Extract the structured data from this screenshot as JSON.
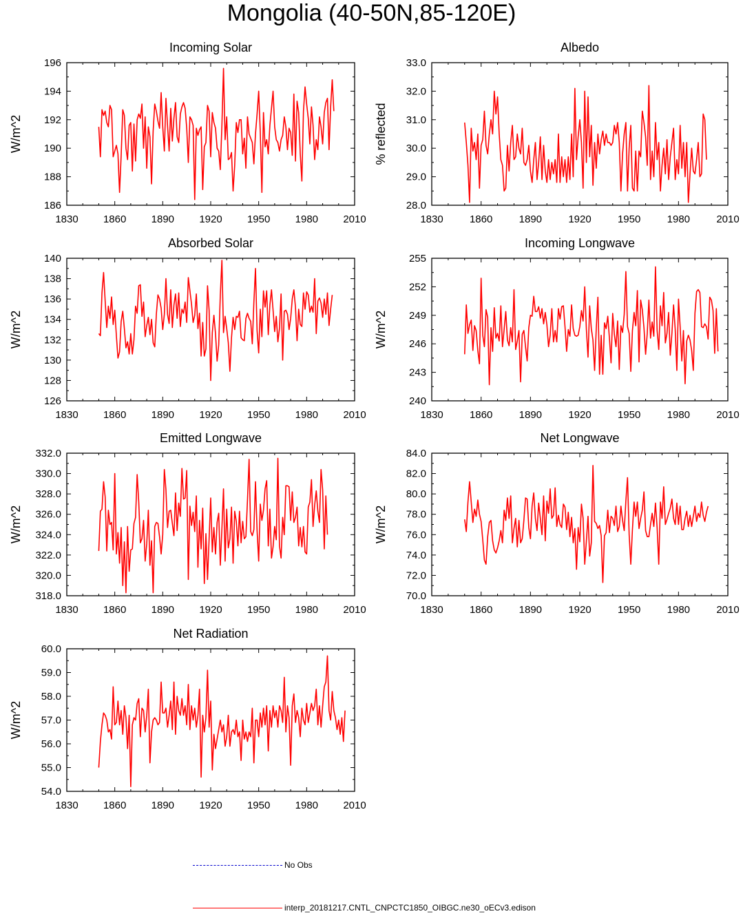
{
  "title": "Mongolia (40-50N,85-120E)",
  "legend": {
    "obs_label": "No Obs",
    "obs_color": "#0000cc",
    "model_label": "interp_20181217.CNTL_CNPCTC1850_OIBGC.ne30_oECv3.edison",
    "model_color": "#ff0000"
  },
  "chart_data": [
    {
      "type": "line",
      "title": "Incoming Solar",
      "ylabel": "W/m^2",
      "xlim": [
        1830,
        2010
      ],
      "ylim": [
        186,
        196
      ],
      "xticks": [
        1830,
        1860,
        1890,
        1920,
        1950,
        1980,
        2010
      ],
      "yticks": [
        "186",
        "188",
        "190",
        "192",
        "194",
        "196"
      ],
      "x_start": 1850,
      "values": [
        191.5,
        189.4,
        192.7,
        192.3,
        192.6,
        191.8,
        191.5,
        193.0,
        192.7,
        189.4,
        189.8,
        190.2,
        189.6,
        186.9,
        189.5,
        192.7,
        192.3,
        190.0,
        189.2,
        191.6,
        191.8,
        188.4,
        191.7,
        189.1,
        192.0,
        192.4,
        192.1,
        193.1,
        190.0,
        192.2,
        188.6,
        191.5,
        190.8,
        187.5,
        191.2,
        193.1,
        192.6,
        191.9,
        191.4,
        193.9,
        191.5,
        189.8,
        193.5,
        191.6,
        189.8,
        192.8,
        190.5,
        192.1,
        193.2,
        190.8,
        190.4,
        192.4,
        192.9,
        193.2,
        192.8,
        191.4,
        189.0,
        192.2,
        192.0,
        191.6,
        186.4,
        191.4,
        190.9,
        191.3,
        191.5,
        187.1,
        190.1,
        190.4,
        193.0,
        192.6,
        189.4,
        192.5,
        191.8,
        191.4,
        190.0,
        189.8,
        188.5,
        191.6,
        195.6,
        190.6,
        192.2,
        189.2,
        189.3,
        189.7,
        187.0,
        188.8,
        191.8,
        191.1,
        192.0,
        192.0,
        189.6,
        190.7,
        188.6,
        192.2,
        191.0,
        190.7,
        190.4,
        188.9,
        191.0,
        192.4,
        194.0,
        191.1,
        186.9,
        192.5,
        190.1,
        190.6,
        189.6,
        191.6,
        192.8,
        194.0,
        191.5,
        190.6,
        190.4,
        189.8,
        190.6,
        190.9,
        192.2,
        191.5,
        189.9,
        191.4,
        191.1,
        189.5,
        193.8,
        189.1,
        193.3,
        192.5,
        189.6,
        187.7,
        192.6,
        194.3,
        193.1,
        192.1,
        190.3,
        192.9,
        191.6,
        189.2,
        190.6,
        189.9,
        192.2,
        191.5,
        190.3,
        192.5,
        193.2,
        193.5,
        189.9,
        192.9,
        194.8,
        192.6
      ]
    },
    {
      "type": "line",
      "title": "Albedo",
      "ylabel": "% reflected",
      "xlim": [
        1830,
        2010
      ],
      "ylim": [
        28,
        33
      ],
      "xticks": [
        1830,
        1860,
        1890,
        1920,
        1950,
        1980,
        2010
      ],
      "yticks": [
        "28.0",
        "29.0",
        "30.0",
        "31.0",
        "32.0",
        "33.0"
      ],
      "x_start": 1850,
      "values": [
        30.9,
        30.2,
        29.4,
        28.1,
        30.7,
        29.9,
        30.2,
        29.6,
        30.5,
        28.6,
        30.1,
        30.3,
        31.3,
        30.1,
        29.8,
        30.5,
        31.0,
        30.5,
        32.0,
        31.2,
        31.8,
        30.5,
        29.6,
        29.4,
        28.5,
        28.6,
        30.1,
        29.2,
        30.2,
        30.8,
        29.6,
        29.7,
        30.5,
        30.0,
        29.8,
        30.7,
        29.5,
        29.4,
        29.6,
        30.1,
        29.2,
        28.8,
        29.6,
        30.2,
        28.9,
        29.5,
        30.4,
        28.9,
        30.1,
        29.2,
        28.8,
        29.6,
        28.9,
        29.5,
        29.1,
        29.6,
        28.8,
        30.5,
        28.8,
        29.7,
        29.0,
        29.6,
        28.8,
        29.7,
        28.9,
        30.5,
        29.0,
        32.1,
        29.6,
        30.4,
        31.0,
        30.2,
        28.6,
        32.0,
        29.5,
        31.8,
        29.7,
        30.8,
        28.7,
        30.2,
        29.3,
        30.5,
        29.8,
        30.3,
        30.6,
        30.1,
        30.5,
        30.2,
        30.2,
        30.1,
        30.2,
        30.8,
        30.5,
        30.9,
        30.2,
        28.5,
        29.8,
        30.5,
        30.9,
        28.5,
        30.0,
        30.8,
        28.6,
        28.5,
        29.9,
        28.5,
        29.9,
        29.7,
        31.3,
        30.9,
        30.4,
        29.4,
        32.2,
        28.9,
        29.9,
        29.0,
        30.9,
        29.6,
        30.2,
        28.5,
        29.4,
        30.0,
        29.1,
        30.3,
        28.9,
        29.7,
        30.2,
        30.7,
        28.9,
        29.6,
        29.1,
        30.8,
        29.3,
        30.2,
        29.0,
        30.2,
        28.1,
        29.1,
        30.0,
        29.2,
        29.1,
        29.6,
        30.2,
        29.0,
        29.1,
        31.2,
        31.0,
        29.6
      ]
    },
    {
      "type": "line",
      "title": "Absorbed Solar",
      "ylabel": "W/m^2",
      "xlim": [
        1830,
        2010
      ],
      "ylim": [
        126,
        140
      ],
      "xticks": [
        1830,
        1860,
        1890,
        1920,
        1950,
        1980,
        2010
      ],
      "yticks": [
        "126",
        "128",
        "130",
        "132",
        "134",
        "136",
        "138",
        "140"
      ],
      "x_start": 1850,
      "values": [
        132.6,
        132.4,
        136.6,
        138.6,
        135.8,
        133.2,
        135.3,
        134.1,
        136.2,
        133.5,
        134.9,
        132.4,
        130.2,
        130.8,
        133.8,
        134.8,
        133.1,
        131.2,
        131.8,
        130.6,
        132.6,
        130.6,
        132.0,
        135.3,
        134.6,
        137.3,
        137.4,
        134.3,
        135.7,
        132.3,
        133.4,
        134.2,
        132.5,
        134.0,
        131.7,
        131.3,
        134.5,
        136.4,
        136.0,
        135.1,
        133.0,
        134.5,
        138.0,
        134.5,
        133.6,
        136.9,
        133.2,
        135.4,
        136.5,
        134.1,
        136.6,
        133.3,
        135.0,
        134.6,
        135.7,
        133.7,
        138.1,
        136.8,
        135.5,
        133.7,
        134.4,
        136.5,
        133.1,
        134.6,
        130.4,
        133.7,
        130.4,
        131.1,
        137.3,
        134.9,
        128.0,
        132.7,
        134.4,
        132.6,
        129.9,
        131.5,
        136.4,
        139.8,
        132.7,
        134.3,
        133.1,
        131.7,
        128.9,
        132.2,
        134.2,
        133.0,
        134.3,
        134.2,
        134.8,
        132.2,
        132.0,
        131.9,
        134.1,
        134.6,
        134.1,
        133.8,
        131.6,
        135.7,
        139.0,
        132.9,
        130.7,
        135.0,
        132.3,
        136.8,
        135.2,
        136.8,
        132.5,
        135.4,
        136.9,
        134.9,
        132.8,
        134.3,
        131.8,
        133.1,
        136.5,
        130.0,
        134.8,
        134.9,
        134.5,
        133.0,
        134.1,
        136.0,
        136.9,
        135.2,
        131.9,
        135.0,
        133.5,
        133.3,
        136.6,
        135.0,
        136.7,
        136.4,
        134.7,
        135.3,
        134.7,
        138.0,
        132.6,
        135.8,
        136.1,
        135.6,
        134.2,
        136.0,
        134.5,
        136.6,
        133.4,
        135.0,
        136.4
      ]
    },
    {
      "type": "line",
      "title": "Incoming Longwave",
      "ylabel": "W/m^2",
      "xlim": [
        1830,
        2010
      ],
      "ylim": [
        240,
        255
      ],
      "xticks": [
        1830,
        1860,
        1890,
        1920,
        1950,
        1980,
        2010
      ],
      "yticks": [
        "240",
        "243",
        "246",
        "249",
        "252",
        "255"
      ],
      "x_start": 1850,
      "values": [
        244.9,
        250.1,
        247.1,
        248.0,
        248.5,
        245.3,
        247.9,
        247.4,
        245.3,
        243.9,
        252.9,
        246.9,
        245.7,
        249.6,
        248.8,
        241.7,
        247.7,
        245.2,
        249.8,
        246.6,
        247.1,
        246.3,
        250.0,
        245.7,
        247.5,
        249.4,
        246.4,
        245.8,
        247.7,
        246.2,
        251.7,
        245.4,
        246.3,
        247.4,
        242.0,
        247.0,
        247.4,
        245.7,
        244.2,
        247.7,
        249.0,
        248.9,
        251.0,
        249.4,
        249.4,
        249.9,
        248.7,
        249.7,
        248.1,
        249.3,
        248.0,
        245.7,
        246.9,
        249.7,
        246.2,
        247.4,
        246.2,
        249.7,
        248.6,
        249.9,
        250.0,
        247.8,
        245.2,
        247.5,
        246.8,
        250.1,
        247.6,
        246.9,
        246.8,
        246.9,
        247.8,
        249.5,
        248.4,
        252.0,
        247.5,
        244.6,
        250.0,
        247.6,
        246.4,
        243.2,
        247.6,
        250.9,
        242.8,
        246.9,
        242.8,
        248.2,
        247.6,
        248.9,
        246.6,
        244.0,
        249.2,
        247.0,
        245.7,
        248.4,
        243.3,
        247.9,
        247.2,
        249.1,
        253.6,
        247.8,
        247.1,
        243.1,
        247.4,
        249.3,
        247.9,
        251.6,
        244.1,
        250.6,
        249.6,
        247.7,
        244.9,
        247.1,
        250.6,
        246.6,
        248.3,
        246.8,
        254.1,
        247.4,
        245.4,
        250.0,
        247.9,
        251.4,
        246.1,
        247.1,
        249.3,
        244.8,
        247.1,
        250.1,
        247.5,
        243.2,
        250.7,
        247.8,
        244.2,
        247.4,
        241.8,
        246.3,
        246.9,
        246.4,
        245.3,
        243.2,
        249.2,
        251.5,
        251.7,
        251.4,
        247.8,
        247.7,
        248.1,
        247.8,
        246.5,
        250.9,
        250.6,
        249.5,
        245.0,
        249.7,
        245.2
      ]
    },
    {
      "type": "line",
      "title": "Emitted Longwave",
      "ylabel": "W/m^2",
      "xlim": [
        1830,
        2010
      ],
      "ylim": [
        318,
        332
      ],
      "xticks": [
        1830,
        1860,
        1890,
        1920,
        1950,
        1980,
        2010
      ],
      "yticks": [
        "318.0",
        "320.0",
        "322.0",
        "324.0",
        "326.0",
        "328.0",
        "330.0",
        "332.0"
      ],
      "x_start": 1850,
      "values": [
        322.4,
        326.3,
        326.5,
        329.2,
        327.7,
        322.4,
        326.4,
        325.0,
        325.2,
        322.5,
        330.0,
        322.1,
        324.2,
        321.2,
        324.7,
        319.0,
        323.3,
        318.3,
        324.8,
        320.4,
        322.5,
        322.6,
        325.1,
        325.7,
        329.9,
        327.2,
        323.2,
        323.6,
        325.4,
        321.4,
        323.1,
        326.4,
        321.0,
        323.4,
        318.3,
        324.8,
        325.2,
        325.1,
        323.8,
        322.1,
        324.0,
        330.4,
        328.4,
        324.7,
        326.3,
        326.4,
        325.1,
        323.9,
        328.1,
        324.4,
        327.1,
        325.8,
        330.5,
        327.5,
        327.6,
        330.3,
        319.6,
        326.8,
        324.9,
        326.2,
        324.3,
        327.8,
        320.8,
        325.4,
        322.6,
        326.6,
        319.2,
        324.1,
        319.6,
        323.6,
        327.6,
        322.3,
        324.7,
        322.1,
        325.2,
        326.1,
        321.0,
        324.6,
        328.5,
        321.4,
        326.5,
        322.7,
        323.6,
        326.7,
        321.2,
        326.3,
        325.3,
        322.9,
        326.3,
        323.2,
        325.3,
        323.6,
        323.8,
        327.4,
        331.4,
        324.3,
        323.9,
        324.5,
        329.2,
        324.4,
        321.4,
        327.0,
        325.4,
        326.4,
        328.5,
        329.3,
        322.9,
        326.5,
        321.7,
        322.8,
        324.8,
        323.5,
        331.5,
        322.9,
        321.7,
        325.7,
        324.0,
        328.8,
        328.8,
        328.7,
        325.4,
        328.2,
        325.2,
        325.7,
        326.7,
        322.9,
        324.7,
        322.8,
        324.8,
        322.3,
        322.1,
        326.7,
        327.2,
        329.4,
        324.8,
        326.9,
        328.3,
        326.3,
        325.2,
        330.4,
        328.4,
        322.6,
        327.8,
        324.0
      ]
    },
    {
      "type": "line",
      "title": "Net Longwave",
      "ylabel": "W/m^2",
      "xlim": [
        1830,
        2010
      ],
      "ylim": [
        70,
        84
      ],
      "xticks": [
        1830,
        1860,
        1890,
        1920,
        1950,
        1980,
        2010
      ],
      "yticks": [
        "70.0",
        "72.0",
        "74.0",
        "76.0",
        "78.0",
        "80.0",
        "82.0",
        "84.0"
      ],
      "x_start": 1850,
      "values": [
        77.5,
        76.3,
        79.2,
        81.2,
        79.2,
        77.2,
        78.5,
        77.8,
        79.4,
        78.0,
        77.3,
        75.5,
        73.5,
        73.1,
        75.8,
        77.2,
        77.4,
        75.4,
        74.5,
        74.2,
        74.7,
        75.4,
        76.4,
        75.2,
        78.4,
        77.4,
        79.6,
        77.6,
        79.8,
        75.2,
        76.6,
        77.6,
        74.8,
        77.4,
        75.2,
        75.6,
        77.4,
        79.6,
        79.5,
        76.7,
        75.6,
        78.8,
        80.1,
        77.6,
        76.4,
        79.1,
        77.6,
        76.0,
        79.8,
        75.4,
        79.3,
        78.1,
        80.5,
        77.6,
        77.9,
        80.6,
        76.8,
        77.9,
        77.0,
        76.7,
        79.0,
        78.7,
        76.5,
        78.2,
        75.8,
        77.7,
        75.2,
        76.6,
        72.6,
        76.7,
        75.3,
        79.0,
        77.6,
        73.1,
        75.4,
        77.8,
        73.9,
        75.2,
        82.8,
        77.3,
        77.1,
        76.6,
        76.9,
        75.9,
        71.3,
        75.9,
        76.2,
        78.4,
        76.2,
        77.8,
        77.6,
        76.9,
        78.8,
        76.3,
        76.8,
        78.8,
        77.4,
        76.4,
        79.3,
        81.6,
        76.0,
        73.1,
        76.5,
        79.2,
        77.8,
        79.2,
        76.6,
        77.6,
        78.4,
        80.2,
        76.4,
        75.8,
        75.8,
        77.0,
        78.1,
        76.8,
        79.1,
        76.7,
        73.1,
        79.2,
        77.6,
        80.7,
        77.0,
        77.5,
        78.1,
        78.6,
        79.5,
        77.6,
        77.0,
        79.1,
        77.0,
        78.8,
        76.5,
        76.5,
        77.6,
        78.3,
        76.8,
        77.9,
        76.8,
        77.8,
        78.8,
        77.3,
        78.1,
        77.7,
        79.2,
        77.9,
        77.3,
        78.2,
        78.8
      ]
    },
    {
      "type": "line",
      "title": "Net Radiation",
      "ylabel": "W/m^2",
      "xlim": [
        1830,
        2010
      ],
      "ylim": [
        54,
        60
      ],
      "xticks": [
        1830,
        1860,
        1890,
        1920,
        1950,
        1980,
        2010
      ],
      "yticks": [
        "54.0",
        "55.0",
        "56.0",
        "57.0",
        "58.0",
        "59.0",
        "60.0"
      ],
      "x_start": 1850,
      "values": [
        55.0,
        56.1,
        56.8,
        57.3,
        57.2,
        57.0,
        56.5,
        56.6,
        56.2,
        58.4,
        56.8,
        56.9,
        57.8,
        56.8,
        57.4,
        56.4,
        57.6,
        57.1,
        55.8,
        57.2,
        54.2,
        56.8,
        57.1,
        57.0,
        57.7,
        57.9,
        56.3,
        57.5,
        57.4,
        56.5,
        57.2,
        58.3,
        55.2,
        56.5,
        57.0,
        57.1,
        57.0,
        56.8,
        56.9,
        58.6,
        57.3,
        57.3,
        57.5,
        56.7,
        57.2,
        57.8,
        56.6,
        58.6,
        56.4,
        58.0,
        57.4,
        57.2,
        57.9,
        57.2,
        57.6,
        56.8,
        58.5,
        56.6,
        57.6,
        57.0,
        57.5,
        56.7,
        57.2,
        58.3,
        54.6,
        57.2,
        56.5,
        57.1,
        59.1,
        56.7,
        57.8,
        54.9,
        56.4,
        55.8,
        56.2,
        56.6,
        57.0,
        56.5,
        56.8,
        55.9,
        56.3,
        57.2,
        55.9,
        56.5,
        56.6,
        56.4,
        57.0,
        56.3,
        56.5,
        55.3,
        57.0,
        56.2,
        56.5,
        56.1,
        56.5,
        56.3,
        57.5,
        55.2,
        57.0,
        57.0,
        56.3,
        57.3,
        56.7,
        57.5,
        56.8,
        57.6,
        55.7,
        57.4,
        56.7,
        57.6,
        57.1,
        57.4,
        56.7,
        57.6,
        57.4,
        56.9,
        58.8,
        56.5,
        57.6,
        57.1,
        55.1,
        57.6,
        58.1,
        56.9,
        57.4,
        57.1,
        56.3,
        57.5,
        57.0,
        56.8,
        57.7,
        56.9,
        57.3,
        57.7,
        57.4,
        57.6,
        58.3,
        56.8,
        57.6,
        56.7,
        57.6,
        58.4,
        58.6,
        59.7,
        57.4,
        57.0,
        58.2,
        57.4,
        57.1,
        56.6,
        57.0,
        56.4,
        57.1,
        56.1,
        57.4
      ]
    }
  ]
}
